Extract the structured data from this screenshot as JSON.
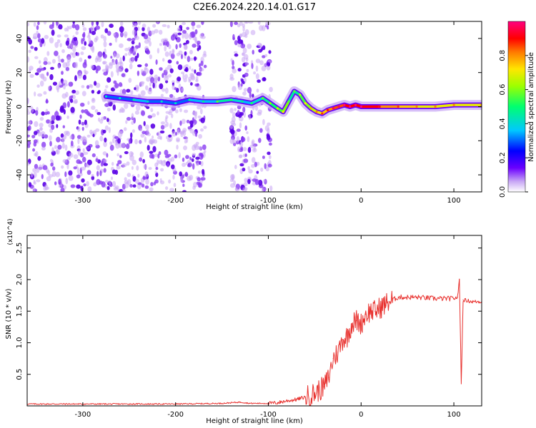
{
  "title": "C2E6.2024.220.14.01.G17",
  "chart_data": [
    {
      "type": "heatmap",
      "description_kind": "spectrogram",
      "xlabel": "Height of straight line (km)",
      "ylabel": "Frequency (Hz)",
      "xlim": [
        -360,
        130
      ],
      "ylim": [
        -50,
        50
      ],
      "x_ticks": [
        -300,
        -200,
        -100,
        0,
        100
      ],
      "y_ticks": [
        -40,
        -20,
        0,
        20,
        40
      ],
      "colorbar": {
        "label": "Normalized spectral amplitude",
        "range": [
          0.0,
          1.0
        ],
        "ticks": [
          0.0,
          0.2,
          0.4,
          0.6,
          0.8
        ],
        "colormap": [
          "#ffffff",
          "#c9a9f5",
          "#6a00ff",
          "#0000ff",
          "#00c8ff",
          "#00ff70",
          "#9cff00",
          "#ffe600",
          "#ff7a00",
          "#ff0000",
          "#ff0080"
        ]
      },
      "noise_regions_x": [
        [
          -360,
          -168
        ],
        [
          -140,
          -97
        ]
      ],
      "ridge": {
        "x": [
          -275,
          -260,
          -245,
          -230,
          -215,
          -200,
          -185,
          -170,
          -155,
          -140,
          -128,
          -118,
          -106,
          -98,
          -90,
          -84,
          -78,
          -72,
          -66,
          -60,
          -54,
          -48,
          -42,
          -36,
          -30,
          -24,
          -18,
          -12,
          -6,
          0,
          20,
          40,
          60,
          80,
          100,
          130
        ],
        "y": [
          6,
          5,
          4,
          3,
          3,
          2,
          4,
          3,
          3,
          4,
          3,
          2,
          5,
          2,
          -1,
          -3,
          3,
          9,
          7,
          2,
          -1,
          -3,
          -4,
          -2,
          -1,
          0,
          1,
          0,
          1,
          0,
          0,
          0,
          0,
          0,
          1,
          1
        ],
        "amplitude": [
          0.3,
          0.3,
          0.35,
          0.3,
          0.3,
          0.3,
          0.35,
          0.35,
          0.45,
          0.4,
          0.35,
          0.4,
          0.45,
          0.5,
          0.55,
          0.6,
          0.45,
          0.45,
          0.55,
          0.6,
          0.65,
          0.7,
          0.75,
          0.8,
          0.85,
          0.85,
          0.9,
          0.9,
          0.9,
          0.9,
          0.8,
          0.75,
          0.7,
          0.7,
          0.7,
          0.7
        ]
      }
    },
    {
      "type": "line",
      "xlabel": "Height of straight line (km)",
      "ylabel": "SNR (10 * v/v)",
      "y_multiplier": "(x10^4)",
      "xlim": [
        -360,
        130
      ],
      "ylim": [
        0,
        2.7
      ],
      "x_ticks": [
        -300,
        -200,
        -100,
        0,
        100
      ],
      "y_ticks": [
        0.5,
        1.0,
        1.5,
        2.0,
        2.5
      ],
      "series": [
        {
          "color": "#e8312e",
          "x": [
            -360,
            -300,
            -250,
            -200,
            -150,
            -130,
            -120,
            -100,
            -90,
            -80,
            -70,
            -60,
            -50,
            -40,
            -35,
            -30,
            -25,
            -20,
            -15,
            -10,
            -5,
            0,
            5,
            10,
            15,
            20,
            25,
            30,
            40,
            60,
            80,
            100,
            104,
            106,
            108,
            110,
            120,
            130
          ],
          "y": [
            0.03,
            0.03,
            0.03,
            0.03,
            0.04,
            0.06,
            0.04,
            0.04,
            0.05,
            0.08,
            0.1,
            0.14,
            0.2,
            0.3,
            0.45,
            0.75,
            0.85,
            1.05,
            1.1,
            1.3,
            1.35,
            1.3,
            1.45,
            1.5,
            1.5,
            1.55,
            1.6,
            1.65,
            1.72,
            1.72,
            1.7,
            1.7,
            1.72,
            2.0,
            0.35,
            1.68,
            1.65,
            1.65
          ]
        }
      ]
    }
  ]
}
